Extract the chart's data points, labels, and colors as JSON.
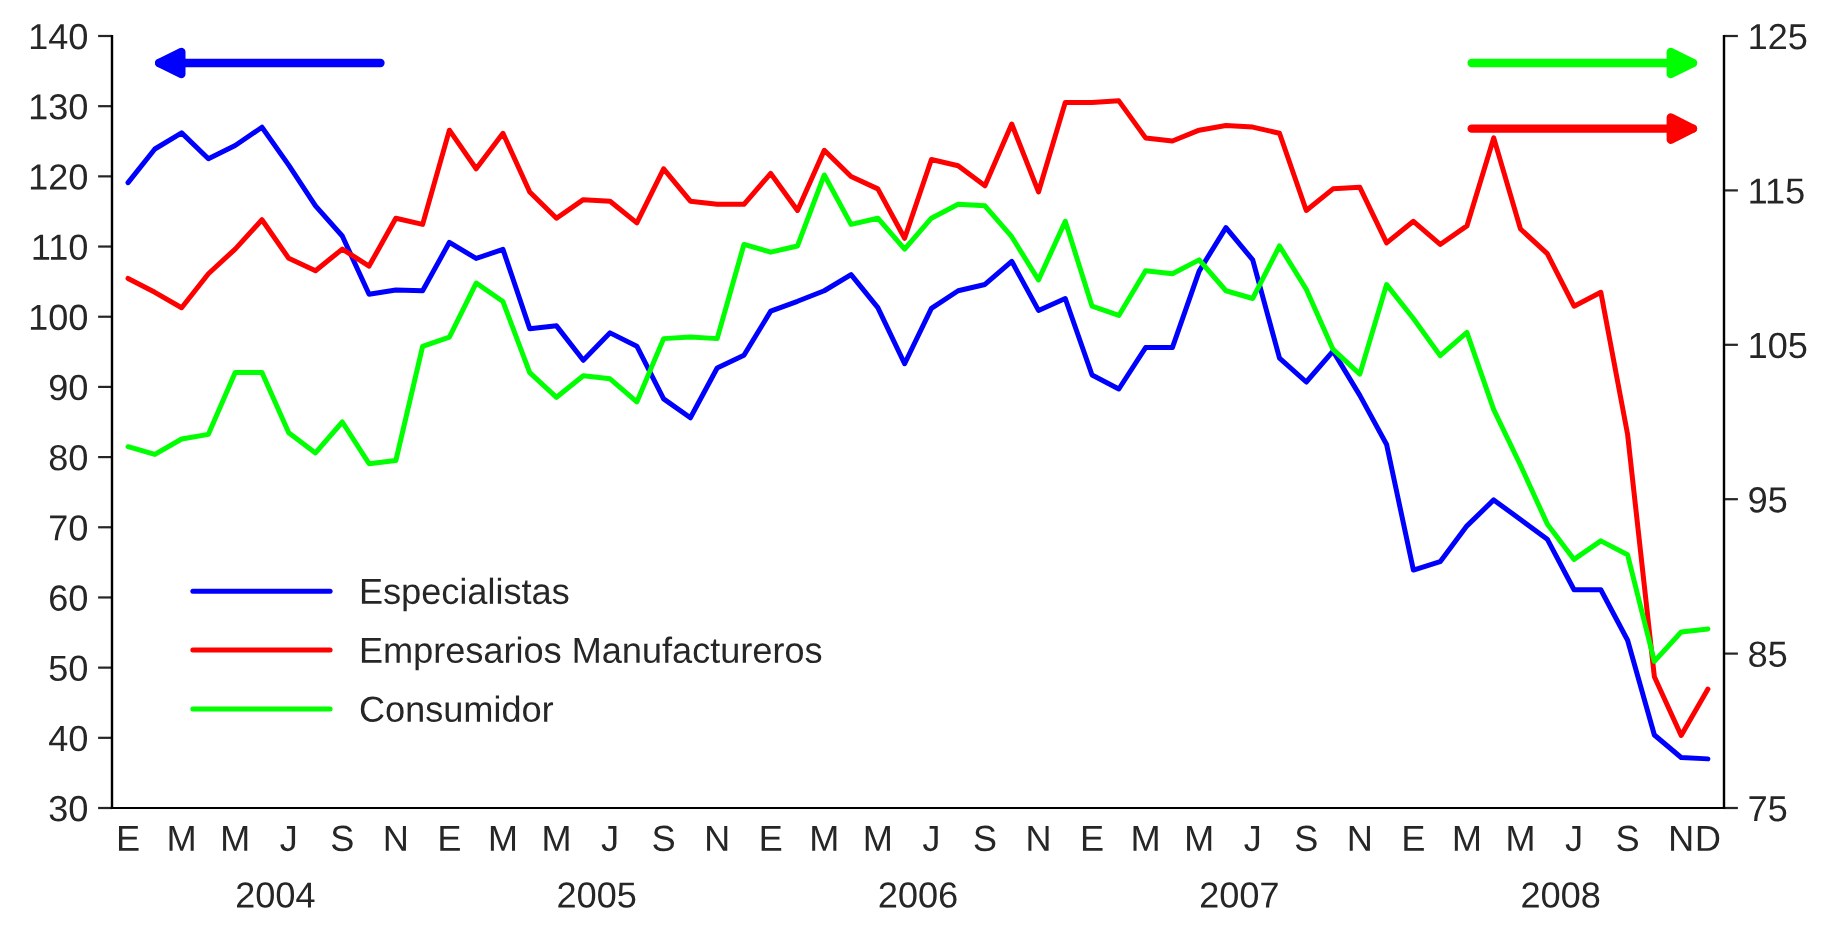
{
  "chart_data": {
    "type": "line",
    "categories": [
      "E",
      null,
      "M",
      null,
      "M",
      null,
      "J",
      null,
      "S",
      null,
      "N",
      null,
      "E",
      null,
      "M",
      null,
      "M",
      null,
      "J",
      null,
      "S",
      null,
      "N",
      null,
      "E",
      null,
      "M",
      null,
      "M",
      null,
      "J",
      null,
      "S",
      null,
      "N",
      null,
      "E",
      null,
      "M",
      null,
      "M",
      null,
      "J",
      null,
      "S",
      null,
      "N",
      null,
      "E",
      null,
      "M",
      null,
      "M",
      null,
      "J",
      null,
      "S",
      null,
      "N",
      "D"
    ],
    "series": [
      {
        "name": "Especialistas",
        "color": "#0000ff",
        "axis": "y",
        "values": [
          119.1,
          123.9,
          126.2,
          122.5,
          124.4,
          127.0,
          121.6,
          115.8,
          111.5,
          103.2,
          103.8,
          103.7,
          110.6,
          108.3,
          109.6,
          98.3,
          98.7,
          93.8,
          97.7,
          95.8,
          88.3,
          85.6,
          92.7,
          94.5,
          100.8,
          102.2,
          103.7,
          106.0,
          101.3,
          93.3,
          101.2,
          103.7,
          104.6,
          107.9,
          100.9,
          102.6,
          91.7,
          89.7,
          95.6,
          95.6,
          106.5,
          112.7,
          108.1,
          94.1,
          90.7,
          95.1,
          88.8,
          81.8,
          63.9,
          65.1,
          70.2,
          73.9,
          71.1,
          68.3,
          61.1,
          61.1,
          53.9,
          40.4,
          37.2,
          37.0
        ]
      },
      {
        "name": "Empresarios Manufactureros",
        "color": "#ff0000",
        "axis": "y2",
        "values": [
          109.3,
          108.4,
          107.4,
          109.6,
          111.2,
          113.1,
          110.6,
          109.8,
          111.2,
          110.1,
          113.2,
          112.8,
          118.9,
          116.4,
          118.7,
          114.9,
          113.2,
          114.4,
          114.3,
          112.9,
          116.4,
          114.3,
          114.1,
          114.1,
          116.1,
          113.7,
          117.6,
          115.9,
          115.1,
          111.9,
          117.0,
          116.6,
          115.3,
          119.3,
          114.9,
          120.7,
          120.7,
          120.8,
          118.4,
          118.2,
          118.9,
          119.2,
          119.1,
          118.7,
          113.7,
          115.1,
          115.2,
          111.6,
          113.0,
          111.5,
          112.7,
          118.4,
          112.5,
          110.9,
          107.5,
          108.4,
          99.2,
          83.5,
          79.7,
          82.7
        ]
      },
      {
        "name": "Consumidor",
        "color": "#00ff00",
        "axis": "y2",
        "values": [
          98.4,
          97.9,
          98.9,
          99.2,
          103.2,
          103.2,
          99.3,
          98.0,
          100.0,
          97.3,
          97.5,
          104.9,
          105.5,
          109.0,
          107.8,
          103.2,
          101.6,
          103.0,
          102.8,
          101.3,
          105.4,
          105.5,
          105.4,
          111.5,
          111.0,
          111.4,
          116.0,
          112.8,
          113.2,
          111.2,
          113.2,
          114.1,
          114.0,
          112.0,
          109.2,
          113.0,
          107.5,
          106.9,
          109.8,
          109.6,
          110.5,
          108.5,
          108.0,
          111.4,
          108.6,
          104.7,
          103.1,
          108.9,
          106.7,
          104.3,
          105.8,
          100.8,
          97.2,
          93.4,
          91.1,
          92.3,
          91.4,
          84.5,
          86.4,
          86.6
        ]
      }
    ],
    "ylim": [
      30,
      140
    ],
    "yticks": [
      30,
      40,
      50,
      60,
      70,
      80,
      90,
      100,
      110,
      120,
      130,
      140
    ],
    "y2lim": [
      75,
      125
    ],
    "y2ticks": [
      75,
      85,
      95,
      105,
      115,
      125
    ],
    "annotations": [
      "2004",
      "2005",
      "2006",
      "2007",
      "2008"
    ],
    "legend": "bottom left",
    "grid": false,
    "marker": "none",
    "line_style": "solid"
  }
}
